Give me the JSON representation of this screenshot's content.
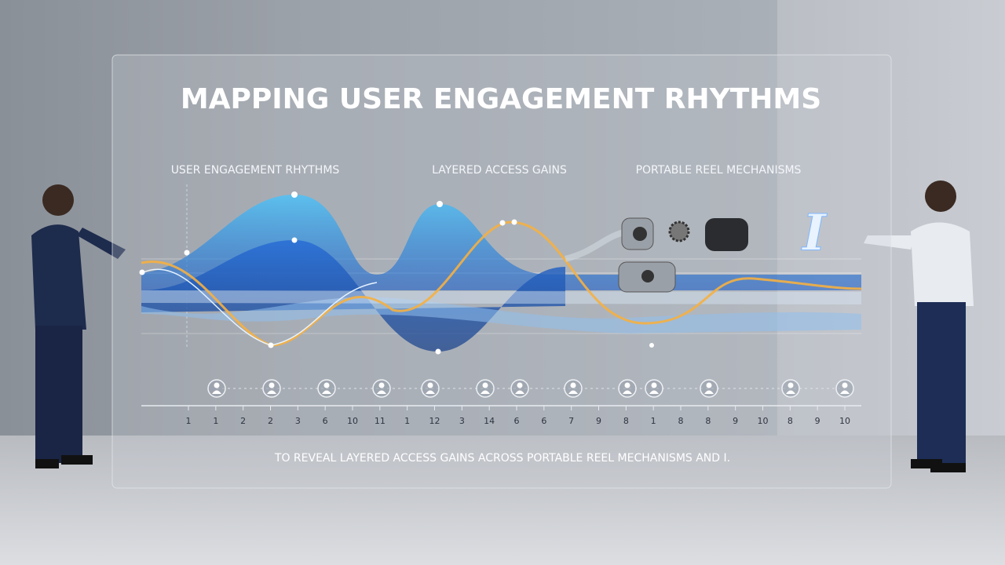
{
  "title": "MAPPING USER ENGAGEMENT RHYTHMS",
  "sections": [
    "USER ENGAGEMENT RHYTHMS",
    "LAYERED ACCESS GAINS",
    "PORTABLE REEL MECHANISMS"
  ],
  "axis_labels": [
    "1",
    "1",
    "2",
    "2",
    "3",
    "6",
    "10",
    "11",
    "1",
    "12",
    "3",
    "14",
    "6",
    "6",
    "7",
    "9",
    "8",
    "1",
    "8",
    "8",
    "9",
    "10",
    "8",
    "9",
    "10"
  ],
  "caption": "TO REVEAL LAYERED ACCESS GAINS ACROSS PORTABLE REEL MECHANISMS AND I."
}
